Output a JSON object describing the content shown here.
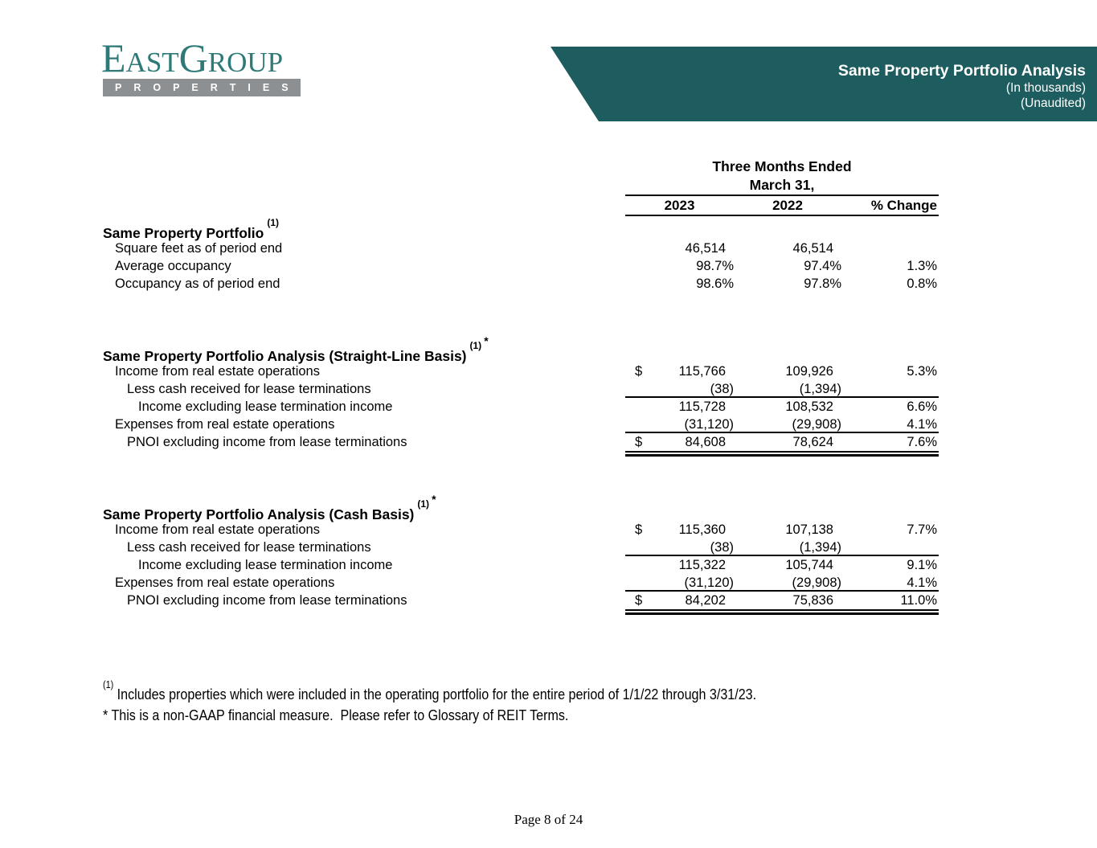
{
  "colors": {
    "banner_teal": "#1e5d5f",
    "logo_teal": "#2e7a78",
    "properties_bar_gray": "#8d9092",
    "text": "#000000"
  },
  "logo": {
    "wordmark": "EastGroup",
    "bar_text": "PROPERTIES"
  },
  "banner": {
    "title": "Same Property Portfolio Analysis",
    "line2": "(In thousands)",
    "line3": "(Unaudited)"
  },
  "table": {
    "period_line1": "Three Months Ended",
    "period_line2": "March 31,",
    "col_2023": "2023",
    "col_2022": "2022",
    "col_change": "% Change",
    "sections": [
      {
        "title": "Same Property Portfolio",
        "sup": "(1)",
        "star": "",
        "rows": [
          {
            "label": "Square feet as of period end",
            "indent": 1,
            "dollar": "",
            "v2023": "46,514",
            "v2022": "46,514",
            "change": ""
          },
          {
            "label": "Average occupancy",
            "indent": 1,
            "dollar": "",
            "v2023": "98.7%",
            "v2022": "97.4%",
            "change": "1.3%"
          },
          {
            "label": "Occupancy as of period end",
            "indent": 1,
            "dollar": "",
            "v2023": "98.6%",
            "v2022": "97.8%",
            "change": "0.8%"
          }
        ]
      },
      {
        "title": "Same Property Portfolio Analysis (Straight-Line Basis)",
        "sup": "(1)",
        "star": "*",
        "rows": [
          {
            "label": "Income from real estate operations",
            "indent": 1,
            "dollar": "$",
            "v2023": "115,766",
            "v2022": "109,926",
            "change": "5.3%"
          },
          {
            "label": "Less cash received for lease terminations",
            "indent": 2,
            "dollar": "",
            "v2023": "(38)",
            "v2022": "(1,394)",
            "change": "",
            "rule_below": true
          },
          {
            "label": "Income excluding lease termination income",
            "indent": 3,
            "dollar": "",
            "v2023": "115,728",
            "v2022": "108,532",
            "change": "6.6%"
          },
          {
            "label": "Expenses from real estate operations",
            "indent": 1,
            "dollar": "",
            "v2023": "(31,120)",
            "v2022": "(29,908)",
            "change": "4.1%",
            "rule_below": true
          },
          {
            "label": "PNOI excluding income from lease terminations",
            "indent": 2,
            "dollar": "$",
            "v2023": "84,608",
            "v2022": "78,624",
            "change": "7.6%",
            "double_below": true
          }
        ]
      },
      {
        "title": "Same Property Portfolio Analysis (Cash Basis)",
        "sup": "(1)",
        "star": "*",
        "rows": [
          {
            "label": "Income from real estate operations",
            "indent": 1,
            "dollar": "$",
            "v2023": "115,360",
            "v2022": "107,138",
            "change": "7.7%"
          },
          {
            "label": "Less cash received for lease terminations",
            "indent": 2,
            "dollar": "",
            "v2023": "(38)",
            "v2022": "(1,394)",
            "change": "",
            "rule_below": true
          },
          {
            "label": "Income excluding lease termination income",
            "indent": 3,
            "dollar": "",
            "v2023": "115,322",
            "v2022": "105,744",
            "change": "9.1%"
          },
          {
            "label": "Expenses from real estate operations",
            "indent": 1,
            "dollar": "",
            "v2023": "(31,120)",
            "v2022": "(29,908)",
            "change": "4.1%",
            "rule_below": true
          },
          {
            "label": "PNOI excluding income from lease terminations",
            "indent": 2,
            "dollar": "$",
            "v2023": "84,202",
            "v2022": "75,836",
            "change": "11.0%",
            "double_below": true
          }
        ]
      }
    ]
  },
  "footnotes": {
    "note1_sup": "(1)",
    "note1_text": "Includes properties which were included in the operating portfolio for the entire period of 1/1/22 through 3/31/23.",
    "note2_text": "* This is a non-GAAP financial measure.  Please refer to Glossary of REIT Terms."
  },
  "footer": {
    "page_label": "Page 8 of 24"
  }
}
